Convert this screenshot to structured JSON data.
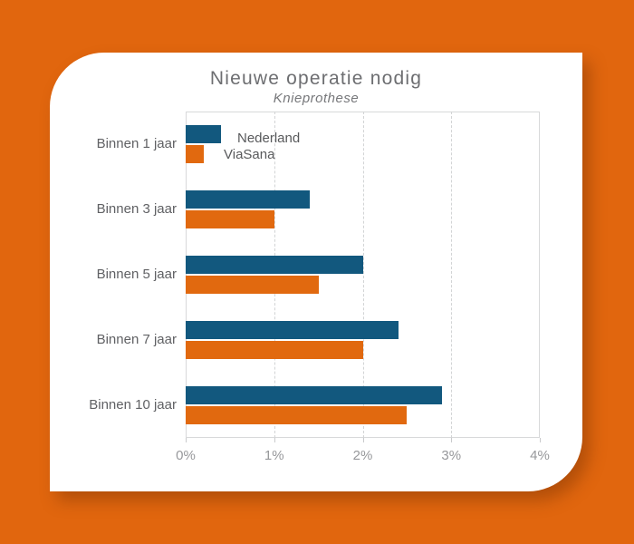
{
  "page": {
    "background_color": "#e1660e"
  },
  "card": {
    "background_color": "#ffffff"
  },
  "colors": {
    "nederland_bar": "#12587e",
    "viasana_bar": "#e1690f",
    "title_text": "#6d6e71",
    "subtitle_text": "#77787b",
    "category_text": "#606164",
    "legend_text": "#58595b",
    "axis_text": "#97989b",
    "gridline": "#d2d4d5",
    "plot_border": "#d8d9da"
  },
  "chart_data": {
    "type": "bar",
    "orientation": "horizontal",
    "title": "Nieuwe operatie nodig",
    "subtitle": "Knieprothese",
    "categories": [
      "Binnen 1 jaar",
      "Binnen 3 jaar",
      "Binnen 5 jaar",
      "Binnen 7 jaar",
      "Binnen 10 jaar"
    ],
    "series": [
      {
        "name": "Nederland",
        "color": "#12587e",
        "values": [
          0.4,
          1.4,
          2.0,
          2.4,
          2.9
        ]
      },
      {
        "name": "ViaSana",
        "color": "#e1690f",
        "values": [
          0.2,
          1.0,
          1.5,
          2.0,
          2.5
        ]
      }
    ],
    "unit": "%",
    "xlabel": "",
    "ylabel": "",
    "xlim": [
      0,
      4
    ],
    "xtick_labels": [
      "0%",
      "1%",
      "2%",
      "3%",
      "4%"
    ],
    "grid": "vertical-dashed",
    "legend_position": "inside-plot-next-to-first-bars"
  }
}
